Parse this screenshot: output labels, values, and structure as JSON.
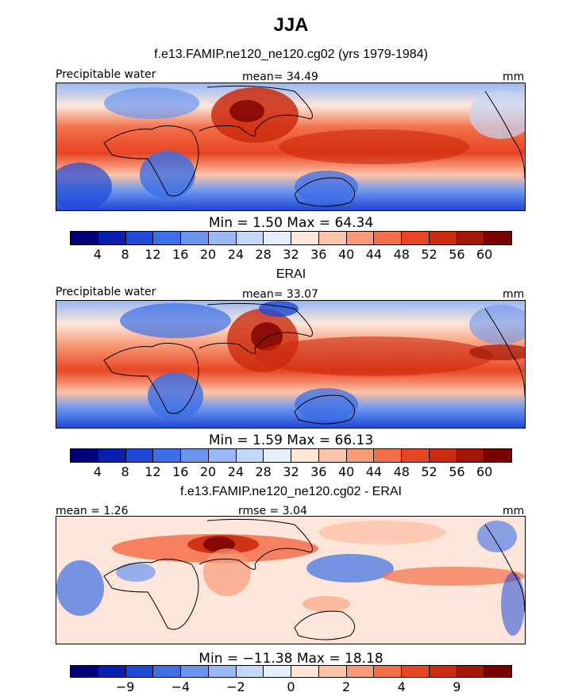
{
  "page": {
    "title": "JJA"
  },
  "chart_data": [
    {
      "type": "heatmap",
      "title": "f.e13.FAMIP.ne120_ne120.cg02 (yrs 1979-1984)",
      "left_label": "Precipitable water",
      "center_label": "mean=  34.49",
      "right_label": "mm",
      "stats_label": "Min =    1.50  Max =   64.34",
      "mean": 34.49,
      "min": 1.5,
      "max": 64.34,
      "units": "mm",
      "colorbar_levels": [
        4,
        8,
        12,
        16,
        20,
        24,
        28,
        32,
        36,
        40,
        44,
        48,
        52,
        56,
        60
      ],
      "colorbar_tick_labels": [
        "4",
        "8",
        "12",
        "16",
        "20",
        "24",
        "28",
        "32",
        "36",
        "40",
        "44",
        "48",
        "52",
        "56",
        "60"
      ]
    },
    {
      "type": "heatmap",
      "title": "ERAI",
      "left_label": "Precipitable water",
      "center_label": "mean=  33.07",
      "right_label": "mm",
      "stats_label": "Min =    1.59  Max =   66.13",
      "mean": 33.07,
      "min": 1.59,
      "max": 66.13,
      "units": "mm",
      "colorbar_levels": [
        4,
        8,
        12,
        16,
        20,
        24,
        28,
        32,
        36,
        40,
        44,
        48,
        52,
        56,
        60
      ],
      "colorbar_tick_labels": [
        "4",
        "8",
        "12",
        "16",
        "20",
        "24",
        "28",
        "32",
        "36",
        "40",
        "44",
        "48",
        "52",
        "56",
        "60"
      ]
    },
    {
      "type": "heatmap",
      "title": "f.e13.FAMIP.ne120_ne120.cg02 - ERAI",
      "left_label": "mean =    1.26",
      "center_label": "rmse =    3.04",
      "right_label": "mm",
      "stats_label": "Min = −11.38  Max =   18.18",
      "mean": 1.26,
      "rmse": 3.04,
      "min": -11.38,
      "max": 18.18,
      "units": "mm",
      "colorbar_tick_labels": [
        "−9",
        "−4",
        "−2",
        "0",
        "2",
        "4",
        "9"
      ]
    }
  ],
  "colors": {
    "scale": [
      "#00007a",
      "#0a1fae",
      "#1f48d6",
      "#3c6fe6",
      "#6b95ef",
      "#99b8f4",
      "#c5d7f8",
      "#e6eefb",
      "#fde6d9",
      "#fbc3a8",
      "#f89a77",
      "#f36f4a",
      "#e84522",
      "#cc2a0e",
      "#a41506",
      "#7a0000"
    ]
  }
}
